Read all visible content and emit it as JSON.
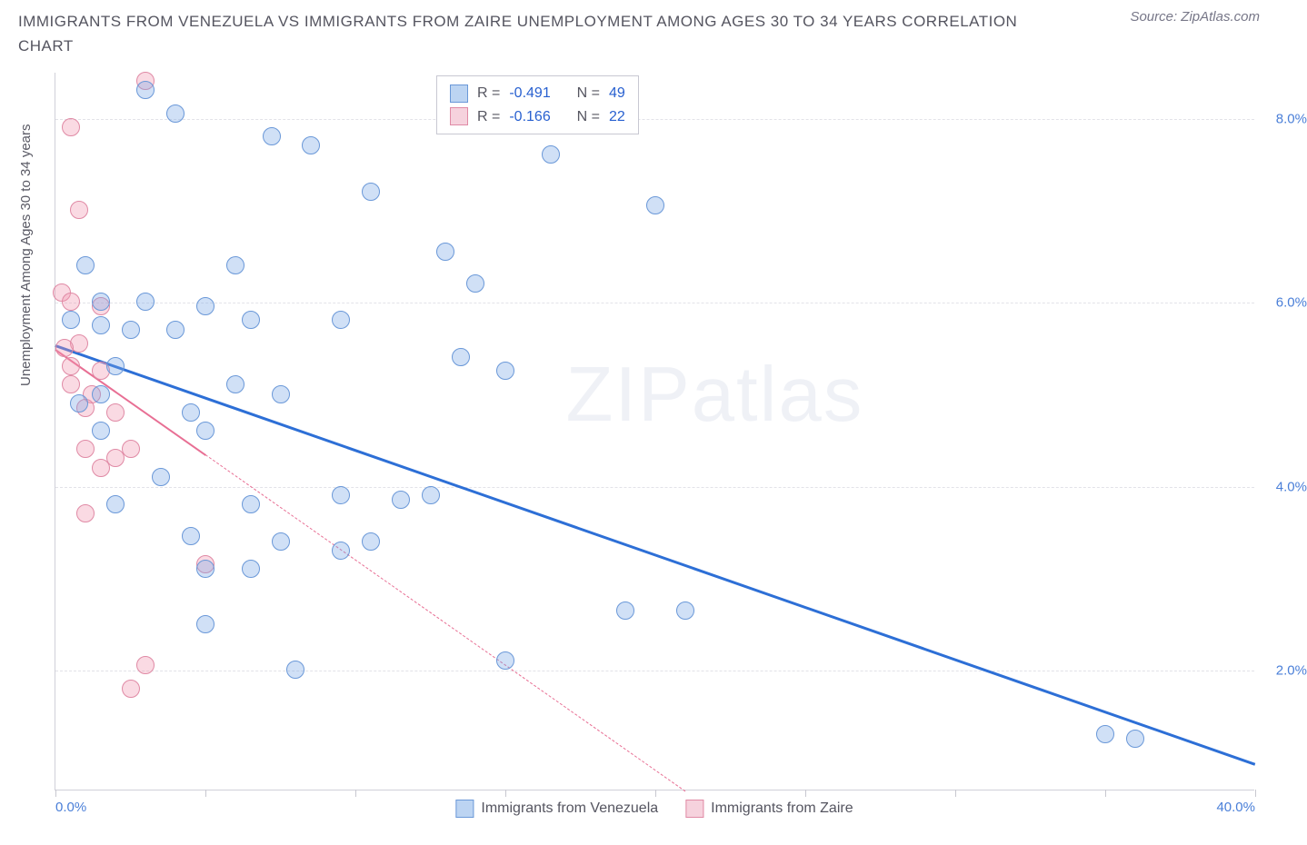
{
  "title": "IMMIGRANTS FROM VENEZUELA VS IMMIGRANTS FROM ZAIRE UNEMPLOYMENT AMONG AGES 30 TO 34 YEARS CORRELATION CHART",
  "source": "Source: ZipAtlas.com",
  "watermark_bold": "ZIP",
  "watermark_thin": "atlas",
  "y_axis_title": "Unemployment Among Ages 30 to 34 years",
  "chart": {
    "type": "scatter",
    "xlim": [
      0,
      40
    ],
    "ylim": [
      0.7,
      8.5
    ],
    "x_ticks": [
      0,
      5,
      10,
      15,
      20,
      25,
      30,
      35,
      40
    ],
    "x_tick_labels": {
      "0": "0.0%",
      "40": "40.0%"
    },
    "y_ticks": [
      2,
      4,
      6,
      8
    ],
    "y_tick_labels": {
      "2": "2.0%",
      "4": "4.0%",
      "6": "6.0%",
      "8": "8.0%"
    },
    "background_color": "#ffffff",
    "grid_color": "#e2e2e8",
    "marker_radius": 10,
    "marker_stroke_width": 1.5,
    "series": [
      {
        "name": "Immigrants from Venezuela",
        "fill": "rgba(120,165,230,0.35)",
        "stroke": "#6a98d8",
        "swatch_fill": "#bcd4f2",
        "swatch_stroke": "#6a98d8",
        "R": "-0.491",
        "N": "49",
        "trend": {
          "x1": 0,
          "y1": 5.55,
          "x2": 40,
          "y2": 1.0,
          "solid_until_x": 40,
          "color": "#2d6fd6",
          "width": 2.5
        },
        "points": [
          [
            3.0,
            8.3
          ],
          [
            4.0,
            8.05
          ],
          [
            7.2,
            7.8
          ],
          [
            8.5,
            7.7
          ],
          [
            16.5,
            7.6
          ],
          [
            10.5,
            7.2
          ],
          [
            20.0,
            7.05
          ],
          [
            13.0,
            6.55
          ],
          [
            1.0,
            6.4
          ],
          [
            6.0,
            6.4
          ],
          [
            14.0,
            6.2
          ],
          [
            1.5,
            6.0
          ],
          [
            3.0,
            6.0
          ],
          [
            5.0,
            5.95
          ],
          [
            6.5,
            5.8
          ],
          [
            0.5,
            5.8
          ],
          [
            1.5,
            5.75
          ],
          [
            9.5,
            5.8
          ],
          [
            2.5,
            5.7
          ],
          [
            4.0,
            5.7
          ],
          [
            13.5,
            5.4
          ],
          [
            2.0,
            5.3
          ],
          [
            6.0,
            5.1
          ],
          [
            1.5,
            5.0
          ],
          [
            7.5,
            5.0
          ],
          [
            0.8,
            4.9
          ],
          [
            4.5,
            4.8
          ],
          [
            1.5,
            4.6
          ],
          [
            5.0,
            4.6
          ],
          [
            15.0,
            5.25
          ],
          [
            3.5,
            4.1
          ],
          [
            6.5,
            3.8
          ],
          [
            9.5,
            3.9
          ],
          [
            11.5,
            3.85
          ],
          [
            12.5,
            3.9
          ],
          [
            2.0,
            3.8
          ],
          [
            4.5,
            3.45
          ],
          [
            7.5,
            3.4
          ],
          [
            10.5,
            3.4
          ],
          [
            9.5,
            3.3
          ],
          [
            5.0,
            3.1
          ],
          [
            6.5,
            3.1
          ],
          [
            19.0,
            2.65
          ],
          [
            21.0,
            2.65
          ],
          [
            5.0,
            2.5
          ],
          [
            15.0,
            2.1
          ],
          [
            8.0,
            2.0
          ],
          [
            35.0,
            1.3
          ],
          [
            36.0,
            1.25
          ]
        ]
      },
      {
        "name": "Immigrants from Zaire",
        "fill": "rgba(240,150,175,0.35)",
        "stroke": "#e08aa5",
        "swatch_fill": "#f6d2dd",
        "swatch_stroke": "#e08aa5",
        "R": "-0.166",
        "N": "22",
        "trend": {
          "x1": 0,
          "y1": 5.5,
          "x2": 21,
          "y2": 0.7,
          "solid_until_x": 5,
          "color": "#e86f94",
          "width": 2
        },
        "points": [
          [
            3.0,
            8.4
          ],
          [
            0.5,
            7.9
          ],
          [
            0.8,
            7.0
          ],
          [
            0.2,
            6.1
          ],
          [
            0.5,
            6.0
          ],
          [
            1.5,
            5.95
          ],
          [
            0.8,
            5.55
          ],
          [
            0.3,
            5.5
          ],
          [
            0.5,
            5.3
          ],
          [
            0.5,
            5.1
          ],
          [
            1.5,
            5.25
          ],
          [
            1.2,
            5.0
          ],
          [
            1.0,
            4.85
          ],
          [
            2.0,
            4.8
          ],
          [
            1.0,
            4.4
          ],
          [
            2.5,
            4.4
          ],
          [
            1.5,
            4.2
          ],
          [
            2.0,
            4.3
          ],
          [
            1.0,
            3.7
          ],
          [
            5.0,
            3.15
          ],
          [
            3.0,
            2.05
          ],
          [
            2.5,
            1.8
          ]
        ]
      }
    ]
  },
  "stat_labels": {
    "R": "R =",
    "N": "N ="
  },
  "legend_items": [
    "Immigrants from Venezuela",
    "Immigrants from Zaire"
  ]
}
